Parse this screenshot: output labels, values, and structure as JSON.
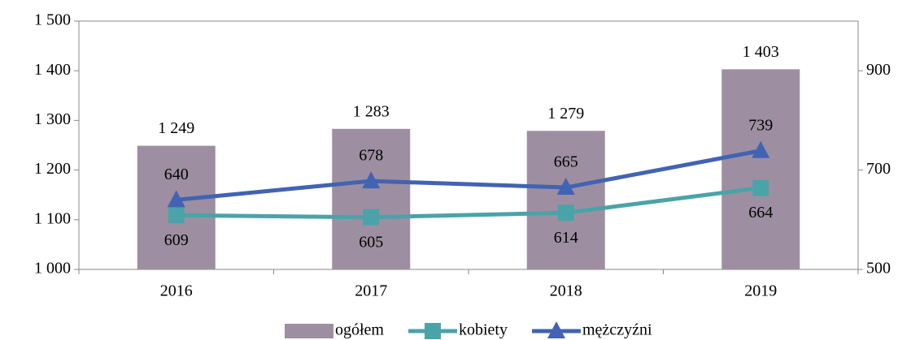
{
  "chart_data": {
    "type": "combo",
    "categories": [
      "2016",
      "2017",
      "2018",
      "2019"
    ],
    "series": [
      {
        "name": "ogółem",
        "type": "bar",
        "color": "#9d8fa1",
        "values": [
          1249,
          1283,
          1279,
          1403
        ],
        "value_labels": [
          "1 249",
          "1 283",
          "1 279",
          "1 403"
        ]
      },
      {
        "name": "kobiety",
        "type": "line",
        "axis": "y2",
        "marker": "square",
        "color": "#4aa3a8",
        "values": [
          609,
          605,
          614,
          664
        ]
      },
      {
        "name": "mężczyźni",
        "type": "line",
        "axis": "y2",
        "marker": "triangle",
        "color": "#4263b3",
        "values": [
          640,
          678,
          665,
          739
        ]
      }
    ],
    "ylim": [
      1000,
      1500
    ],
    "yticks": [
      {
        "value": 1000,
        "label": "1 000"
      },
      {
        "value": 1100,
        "label": "1 100"
      },
      {
        "value": 1200,
        "label": "1 200"
      },
      {
        "value": 1300,
        "label": "1 300"
      },
      {
        "value": 1400,
        "label": "1 400"
      },
      {
        "value": 1500,
        "label": "1 500"
      }
    ],
    "y2lim": [
      500,
      1000
    ],
    "y2ticks": [
      500,
      700,
      900
    ],
    "legend": "bottom"
  }
}
